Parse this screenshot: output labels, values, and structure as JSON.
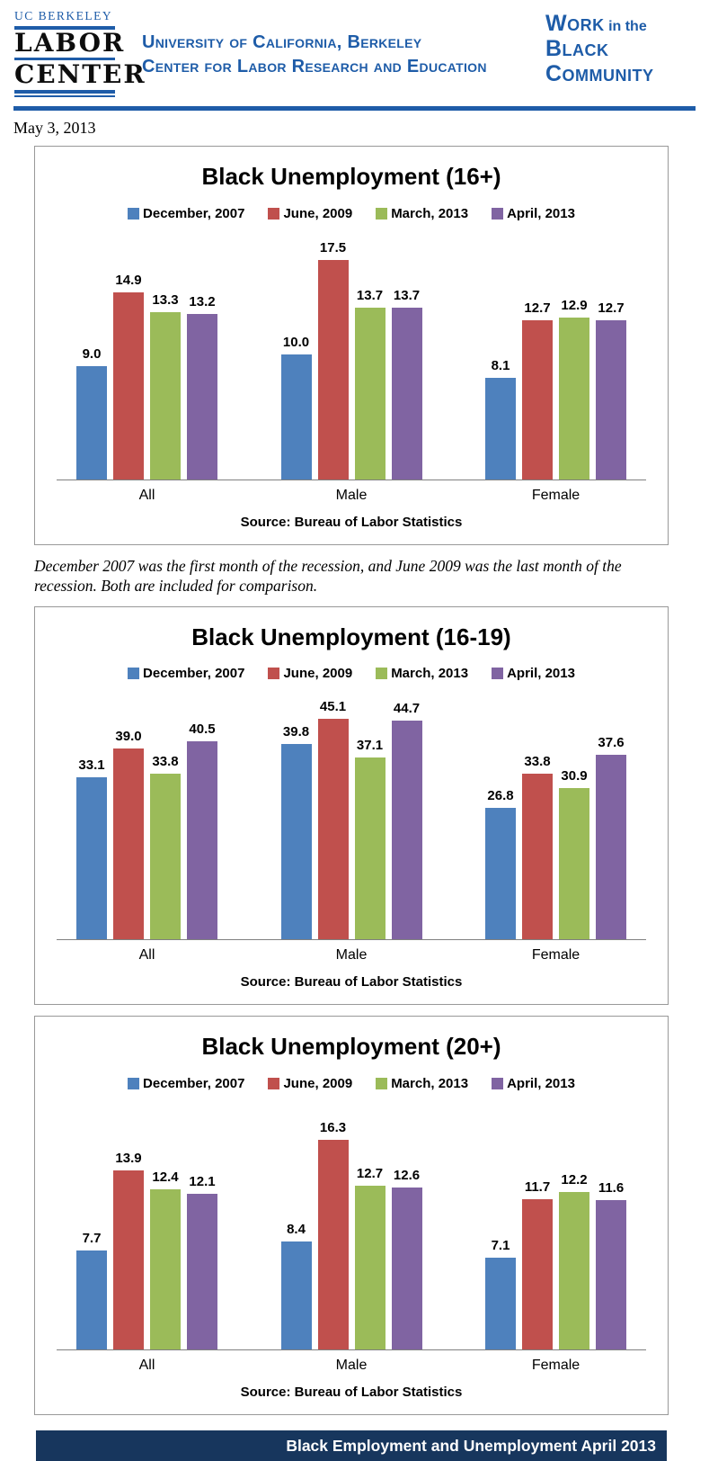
{
  "header": {
    "logo_line1": "UC BERKELEY",
    "logo_line2": "LABOR",
    "logo_line3": "CENTER",
    "org_line1": "University of California, Berkeley",
    "org_line2": "Center for Labor Research and Education",
    "brand_word1": "Work",
    "brand_infix": "in the",
    "brand_word2": "Black",
    "brand_word3": "Community"
  },
  "date_text": "May 3, 2013",
  "note_text": "December 2007 was the first month of the recession, and June 2009 was the last month of the recession. Both are included for comparison.",
  "footer_text": "Black Employment and Unemployment April 2013",
  "colors": {
    "accent_blue": "#1e5ca8",
    "footer_navy": "#17365d",
    "box_border": "#999999",
    "axis_gray": "#808080",
    "series_blue": "#4e81bd",
    "series_red": "#c0504d",
    "series_green": "#9bbb59",
    "series_purple": "#8064a2"
  },
  "chart_data": [
    {
      "type": "bar",
      "title": "Black Unemployment (16+)",
      "source": "Source: Bureau of Labor Statistics",
      "categories": [
        "All",
        "Male",
        "Female"
      ],
      "series": [
        {
          "name": "December, 2007",
          "color": "#4e81bd",
          "values": [
            9.0,
            10.0,
            8.1
          ]
        },
        {
          "name": "June, 2009",
          "color": "#c0504d",
          "values": [
            14.9,
            17.5,
            12.7
          ]
        },
        {
          "name": "March, 2013",
          "color": "#9bbb59",
          "values": [
            13.3,
            13.7,
            12.9
          ]
        },
        {
          "name": "April, 2013",
          "color": "#8064a2",
          "values": [
            13.2,
            13.7,
            12.7
          ]
        }
      ],
      "ylim": [
        0,
        19.5
      ],
      "grid": false,
      "legend_position": "top",
      "xlabel": "",
      "ylabel": ""
    },
    {
      "type": "bar",
      "title": "Black Unemployment (16-19)",
      "source": "Source: Bureau of Labor Statistics",
      "categories": [
        "All",
        "Male",
        "Female"
      ],
      "series": [
        {
          "name": "December, 2007",
          "color": "#4e81bd",
          "values": [
            33.1,
            39.8,
            26.8
          ]
        },
        {
          "name": "June, 2009",
          "color": "#c0504d",
          "values": [
            39.0,
            45.1,
            33.8
          ]
        },
        {
          "name": "March, 2013",
          "color": "#9bbb59",
          "values": [
            33.8,
            37.1,
            30.9
          ]
        },
        {
          "name": "April, 2013",
          "color": "#8064a2",
          "values": [
            40.5,
            44.7,
            37.6
          ]
        }
      ],
      "ylim": [
        0,
        50
      ],
      "grid": false,
      "legend_position": "top",
      "xlabel": "",
      "ylabel": ""
    },
    {
      "type": "bar",
      "title": "Black Unemployment (20+)",
      "source": "Source: Bureau of Labor Statistics",
      "categories": [
        "All",
        "Male",
        "Female"
      ],
      "series": [
        {
          "name": "December, 2007",
          "color": "#4e81bd",
          "values": [
            7.7,
            8.4,
            7.1
          ]
        },
        {
          "name": "June, 2009",
          "color": "#c0504d",
          "values": [
            13.9,
            16.3,
            11.7
          ]
        },
        {
          "name": "March, 2013",
          "color": "#9bbb59",
          "values": [
            12.4,
            12.7,
            12.2
          ]
        },
        {
          "name": "April, 2013",
          "color": "#8064a2",
          "values": [
            12.1,
            12.6,
            11.6
          ]
        }
      ],
      "ylim": [
        0,
        19
      ],
      "grid": false,
      "legend_position": "top",
      "xlabel": "",
      "ylabel": ""
    }
  ]
}
